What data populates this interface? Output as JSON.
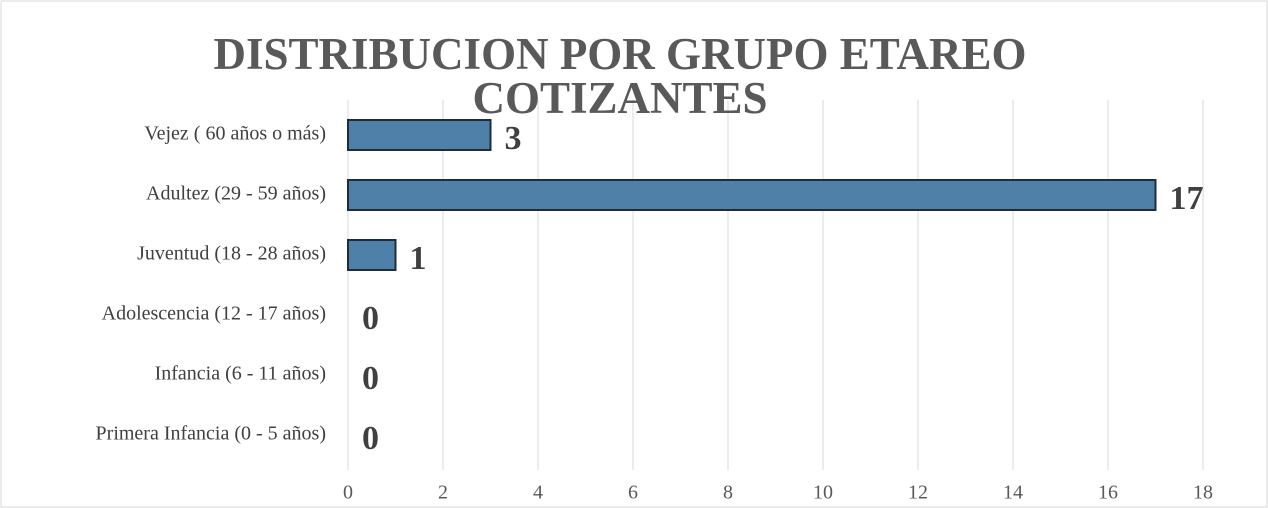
{
  "chart_data": {
    "type": "hbar",
    "title": "DISTRIBUCION POR GRUPO ETAREO COTIZANTES",
    "categories": [
      "Vejez ( 60 años o más)",
      "Adultez (29 - 59 años)",
      "Juventud (18 - 28 años)",
      "Adolescencia (12 - 17 años)",
      "Infancia (6 - 11 años)",
      "Primera Infancia (0 - 5 años)"
    ],
    "values": [
      3,
      17,
      1,
      0,
      0,
      0
    ],
    "color": "#4f81a8",
    "xlim": [
      0,
      18
    ],
    "xticks": [
      0,
      2,
      4,
      6,
      8,
      10,
      12,
      14,
      16,
      18
    ],
    "grid": true
  }
}
